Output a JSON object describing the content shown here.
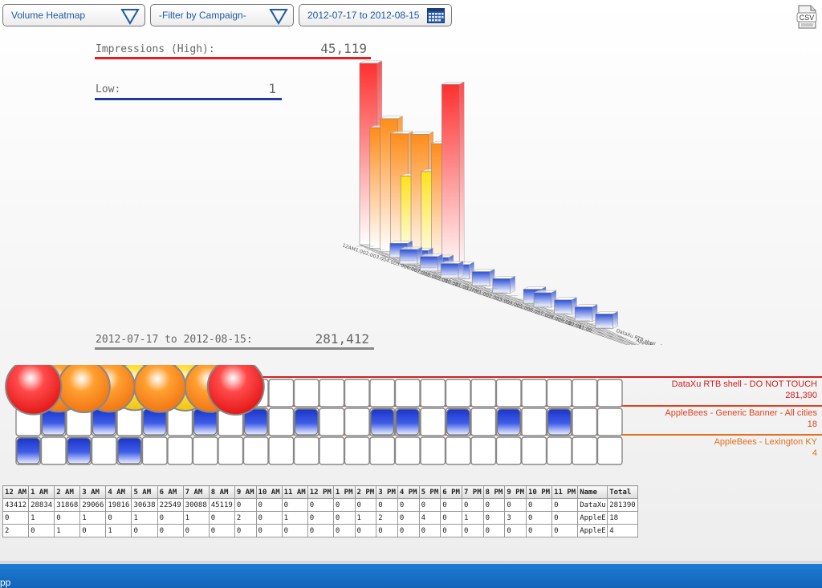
{
  "toolbar": {
    "view_select": "Volume Heatmap",
    "campaign_filter": "-Filter by Campaign-",
    "date_range": "2012-07-17 to 2012-08-15",
    "csv_label": "CSV"
  },
  "stats": {
    "high_label": "Impressions (High):",
    "high_value": "45,119",
    "low_label": "Low:",
    "low_value": "1",
    "range_label": "2012-07-17 to 2012-08-15:",
    "range_total": "281,412"
  },
  "colors": {
    "high": "#e02020",
    "low": "#1f3d99",
    "range": "#888888",
    "row1": "#cc2222",
    "row2": "#dd4422",
    "row3": "#e07020"
  },
  "hours": [
    "12 AM",
    "1 AM",
    "2 AM",
    "3 AM",
    "4 AM",
    "5 AM",
    "6 AM",
    "7 AM",
    "8 AM",
    "9 AM",
    "10 AM",
    "11 AM",
    "12 PM",
    "1 PM",
    "2 PM",
    "3 PM",
    "4 PM",
    "5 PM",
    "6 PM",
    "7 PM",
    "8 PM",
    "9 PM",
    "10 PM",
    "11 PM"
  ],
  "chart3d_hour_labels": [
    "12AM",
    "1:00",
    "2:00",
    "3:00",
    "4:00",
    "5:00",
    "6:00",
    "7:00",
    "8:00",
    "9:00",
    "10:00",
    "11:00",
    "12PM",
    "1:00",
    "2:00",
    "3:00",
    "4:00",
    "5:00",
    "6:00",
    "7:00",
    "8:00",
    "9:00",
    "10:00",
    "11:00"
  ],
  "chart3d_campaign_labels": [
    "DataXu RTB shell - DO NOT T",
    "AppleBees - Generic Banner - All",
    "AppleBees - Lexington KY"
  ],
  "campaigns": [
    {
      "label": "DataXu RTB shell - DO NOT TOUCH",
      "total_display": "281,390"
    },
    {
      "label": "AppleBees - Generic Banner - All cities",
      "total_display": "18"
    },
    {
      "label": "AppleBees - Lexington KY",
      "total_display": "4"
    }
  ],
  "table": {
    "name_header": "Name",
    "total_header": "Total",
    "rows": [
      {
        "values": [
          "43412",
          "28834",
          "31868",
          "29066",
          "19816",
          "30638",
          "22549",
          "30088",
          "45119",
          "0",
          "0",
          "0",
          "0",
          "0",
          "0",
          "0",
          "0",
          "0",
          "0",
          "0",
          "0",
          "0",
          "0",
          "0"
        ],
        "name": "DataXu",
        "total": "281390"
      },
      {
        "values": [
          "0",
          "1",
          "0",
          "1",
          "0",
          "1",
          "0",
          "1",
          "0",
          "2",
          "0",
          "1",
          "0",
          "0",
          "1",
          "2",
          "0",
          "4",
          "0",
          "1",
          "0",
          "3",
          "0",
          "0"
        ],
        "name": "AppleE",
        "total": "18"
      },
      {
        "values": [
          "2",
          "0",
          "1",
          "0",
          "1",
          "0",
          "0",
          "0",
          "0",
          "0",
          "0",
          "0",
          "0",
          "0",
          "0",
          "0",
          "0",
          "0",
          "0",
          "0",
          "0",
          "0",
          "0",
          "0"
        ],
        "name": "AppleE",
        "total": "4"
      }
    ]
  },
  "taskbar_text": "pp"
}
